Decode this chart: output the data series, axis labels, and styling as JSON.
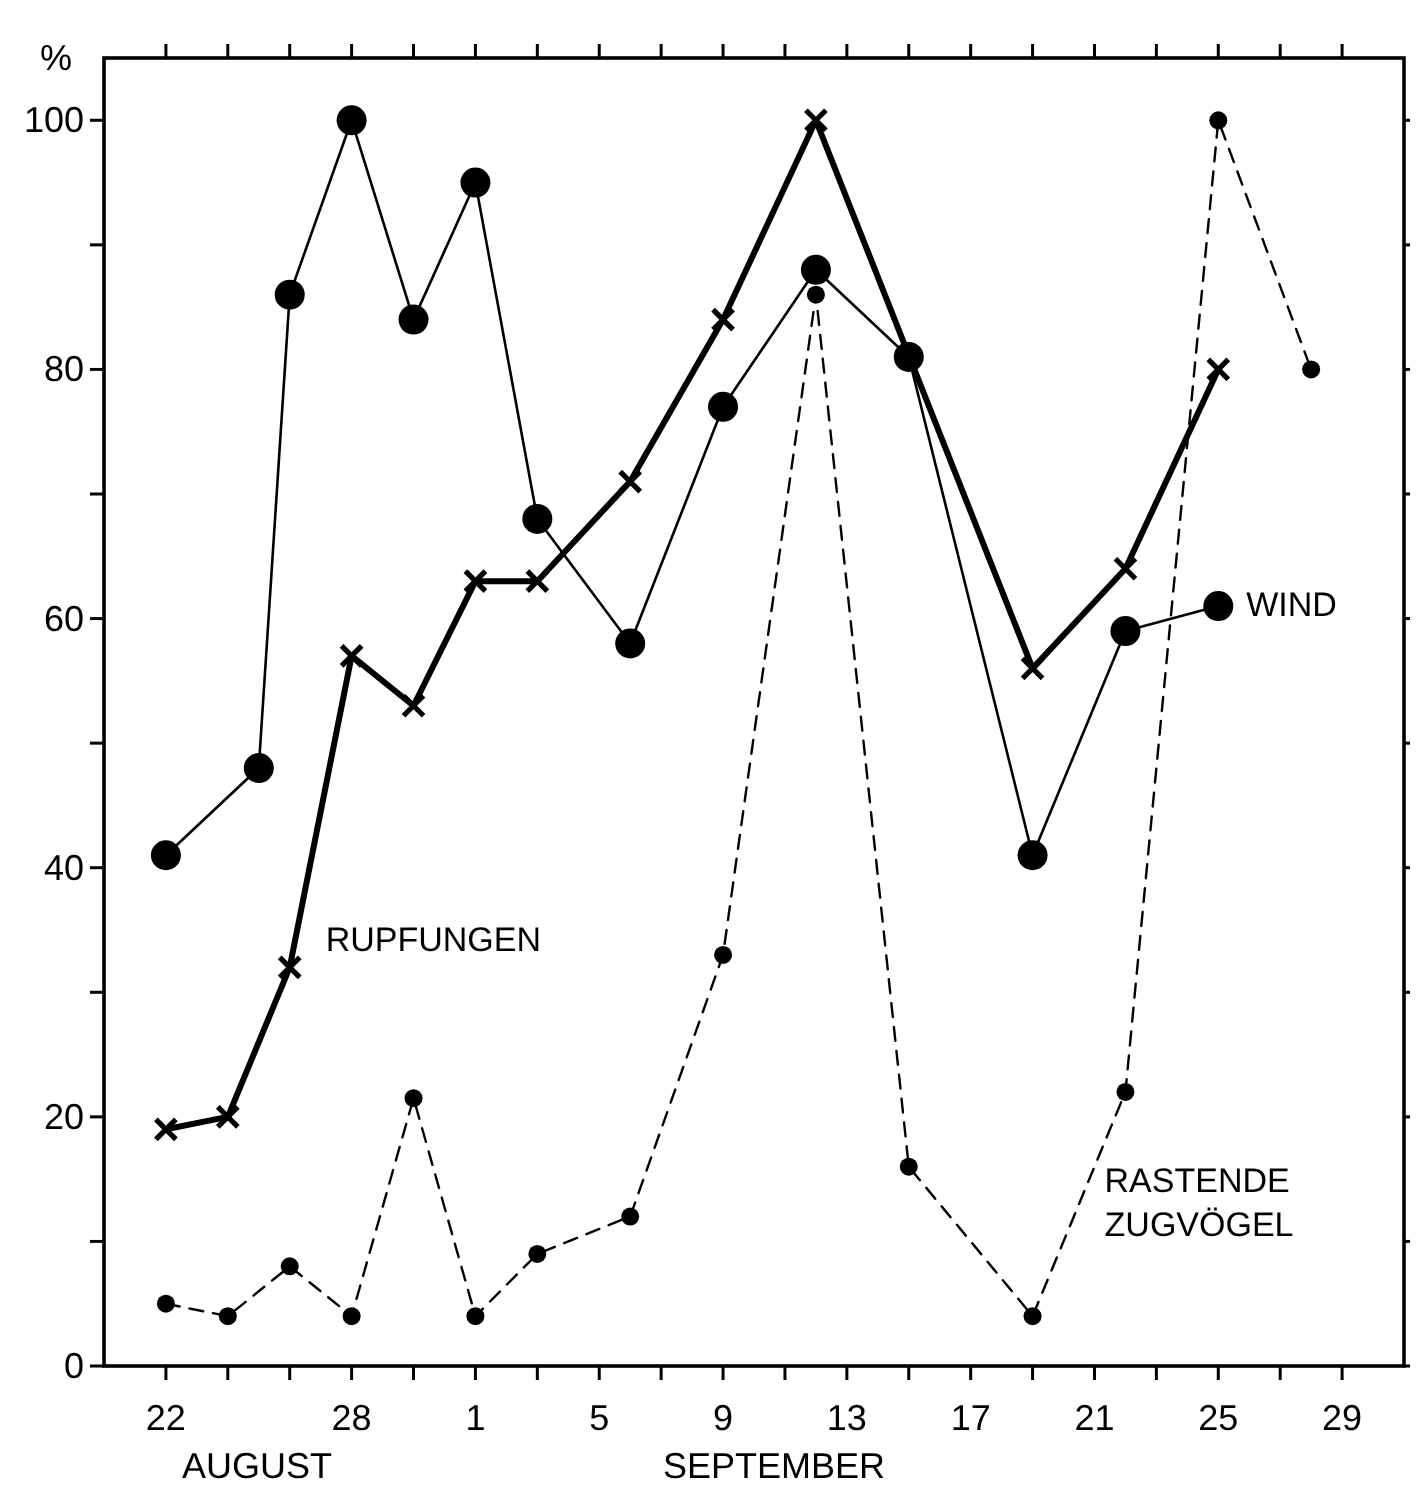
{
  "chart_data": {
    "type": "line",
    "ylabel": "%",
    "annotations": [
      "AUGUST",
      "SEPTEMBER"
    ],
    "xlim": [
      "--08-20",
      "--10-01"
    ],
    "xticks": [
      {
        "value": "--08-22",
        "label": "22"
      },
      {
        "value": "--08-24",
        "label": null
      },
      {
        "value": "--08-26",
        "label": null
      },
      {
        "value": "--08-28",
        "label": "28"
      },
      {
        "value": "--08-30",
        "label": null
      },
      {
        "value": "--09-01",
        "label": "1"
      },
      {
        "value": "--09-03",
        "label": null
      },
      {
        "value": "--09-05",
        "label": "5"
      },
      {
        "value": "--09-07",
        "label": null
      },
      {
        "value": "--09-09",
        "label": "9"
      },
      {
        "value": "--09-11",
        "label": null
      },
      {
        "value": "--09-13",
        "label": "13"
      },
      {
        "value": "--09-15",
        "label": null
      },
      {
        "value": "--09-17",
        "label": "17"
      },
      {
        "value": "--09-19",
        "label": null
      },
      {
        "value": "--09-21",
        "label": "21"
      },
      {
        "value": "--09-23",
        "label": null
      },
      {
        "value": "--09-25",
        "label": "25"
      },
      {
        "value": "--09-27",
        "label": null
      },
      {
        "value": "--09-29",
        "label": "29"
      }
    ],
    "ylim": [
      0,
      105
    ],
    "yticks": [
      0,
      {
        "value": 10,
        "label": null
      },
      20,
      {
        "value": 30,
        "label": null
      },
      40,
      {
        "value": 50,
        "label": null
      },
      60,
      {
        "value": 70,
        "label": null
      },
      80,
      {
        "value": 90,
        "label": null
      },
      100
    ],
    "grid": false,
    "series": [
      {
        "name": "WIND",
        "color": "#000000",
        "marker": "circle",
        "line_style": "solid",
        "x": [
          "--08-22",
          "--08-25",
          "--08-26",
          "--08-28",
          "--08-30",
          "--09-01",
          "--09-03",
          "--09-06",
          "--09-09",
          "--09-12",
          "--09-15",
          "--09-19",
          "--09-22",
          "--09-25"
        ],
        "values": [
          41,
          48,
          86,
          100,
          84,
          95,
          68,
          58,
          77,
          88,
          81,
          41,
          59,
          61
        ]
      },
      {
        "name": "RUPFUNGEN",
        "color": "#000000",
        "marker": "cross",
        "line_style": "solid",
        "x": [
          "--08-22",
          "--08-24",
          "--08-26",
          "--08-28",
          "--08-30",
          "--09-01",
          "--09-03",
          "--09-06",
          "--09-09",
          "--09-12",
          "--09-19",
          "--09-22",
          "--09-25"
        ],
        "values": [
          19,
          20,
          32,
          57,
          53,
          63,
          63,
          71,
          84,
          100,
          56,
          64,
          80
        ]
      },
      {
        "name": "RASTENDE ZUGVÖGEL",
        "color": "#000000",
        "marker": "circle",
        "line_style": "dashed",
        "x": [
          "--08-22",
          "--08-24",
          "--08-26",
          "--08-28",
          "--08-30",
          "--09-01",
          "--09-03",
          "--09-06",
          "--09-09",
          "--09-12",
          "--09-15",
          "--09-19",
          "--09-22",
          "--09-25",
          "--09-28"
        ],
        "values": [
          5,
          4,
          8,
          4,
          21.5,
          4,
          9,
          12,
          33,
          86,
          16,
          4,
          22,
          100,
          80
        ]
      }
    ]
  }
}
